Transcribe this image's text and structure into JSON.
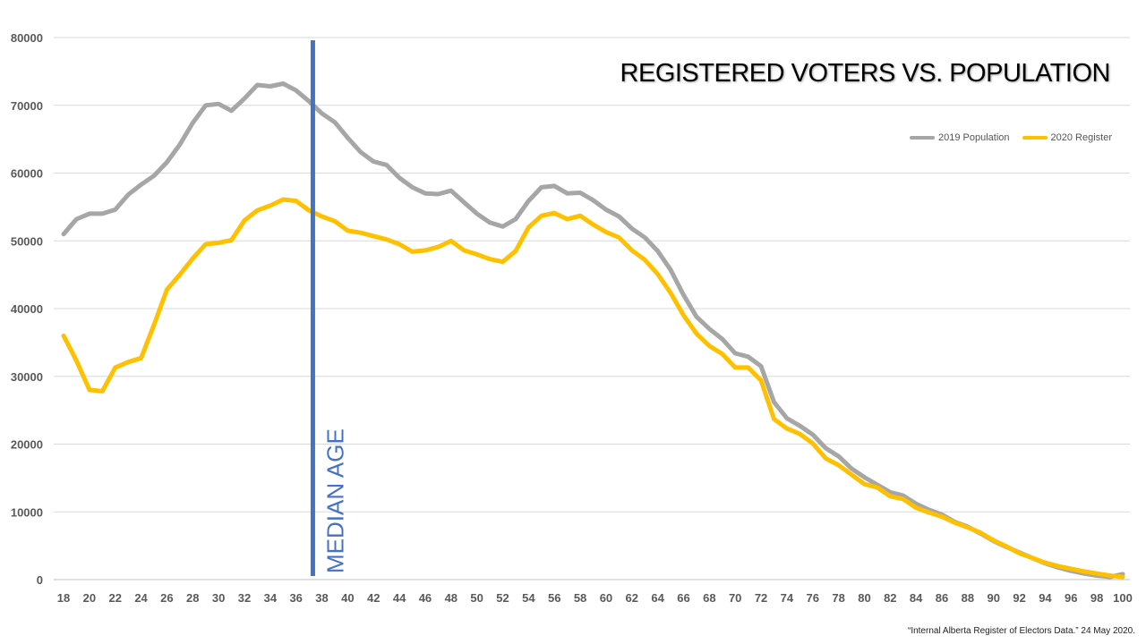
{
  "chart_data": {
    "type": "line",
    "title": "REGISTERED VOTERS VS. POPULATION",
    "xlabel": "",
    "ylabel": "",
    "xlim": [
      18,
      100
    ],
    "ylim": [
      0,
      80000
    ],
    "y_ticks": [
      0,
      10000,
      20000,
      30000,
      40000,
      50000,
      60000,
      70000,
      80000
    ],
    "x_tick_labels": [
      18,
      20,
      22,
      24,
      26,
      28,
      30,
      32,
      34,
      36,
      38,
      40,
      42,
      44,
      46,
      48,
      50,
      52,
      54,
      56,
      58,
      60,
      62,
      64,
      66,
      68,
      70,
      72,
      74,
      76,
      78,
      80,
      82,
      84,
      86,
      88,
      90,
      92,
      94,
      96,
      98,
      100
    ],
    "grid": "horizontal",
    "legend_position": "top-right",
    "x": [
      18,
      19,
      20,
      21,
      22,
      23,
      24,
      25,
      26,
      27,
      28,
      29,
      30,
      31,
      32,
      33,
      34,
      35,
      36,
      37,
      38,
      39,
      40,
      41,
      42,
      43,
      44,
      45,
      46,
      47,
      48,
      49,
      50,
      51,
      52,
      53,
      54,
      55,
      56,
      57,
      58,
      59,
      60,
      61,
      62,
      63,
      64,
      65,
      66,
      67,
      68,
      69,
      70,
      71,
      72,
      73,
      74,
      75,
      76,
      77,
      78,
      79,
      80,
      81,
      82,
      83,
      84,
      85,
      86,
      87,
      88,
      89,
      90,
      91,
      92,
      93,
      94,
      95,
      96,
      97,
      98,
      99,
      100
    ],
    "series": [
      {
        "name": "2019 Population",
        "color": "#a6a6a6",
        "values": [
          51000,
          53200,
          54000,
          54000,
          54600,
          56800,
          58300,
          59600,
          61600,
          64200,
          67400,
          70000,
          70200,
          69200,
          71000,
          73000,
          72800,
          73200,
          72200,
          70600,
          68800,
          67500,
          65200,
          63100,
          61700,
          61200,
          59300,
          57900,
          57000,
          56900,
          57400,
          55700,
          54000,
          52700,
          52100,
          53200,
          55900,
          57900,
          58100,
          57000,
          57100,
          56000,
          54600,
          53600,
          51800,
          50500,
          48500,
          45700,
          42000,
          38800,
          37000,
          35500,
          33400,
          32900,
          31500,
          26200,
          23800,
          22700,
          21400,
          19400,
          18200,
          16400,
          15100,
          14000,
          12900,
          12400,
          11200,
          10300,
          9600,
          8500,
          7800,
          6800,
          5700,
          4800,
          4000,
          3200,
          2400,
          1800,
          1300,
          900,
          600,
          400,
          800
        ]
      },
      {
        "name": "2020 Register",
        "color": "#ffc000",
        "values": [
          36000,
          32300,
          28000,
          27800,
          31300,
          32100,
          32700,
          37600,
          42800,
          45000,
          47400,
          49500,
          49700,
          50100,
          53000,
          54500,
          55200,
          56100,
          55900,
          54500,
          53600,
          52900,
          51500,
          51200,
          50700,
          50200,
          49500,
          48400,
          48600,
          49100,
          50000,
          48600,
          48000,
          47300,
          46900,
          48500,
          52000,
          53700,
          54100,
          53200,
          53700,
          52400,
          51300,
          50500,
          48600,
          47200,
          45100,
          42300,
          39000,
          36300,
          34500,
          33300,
          31300,
          31300,
          29400,
          23700,
          22300,
          21500,
          20100,
          17900,
          16900,
          15500,
          14100,
          13600,
          12300,
          11900,
          10600,
          9900,
          9300,
          8400,
          7700,
          6900,
          5800,
          4900,
          3900,
          3200,
          2500,
          2000,
          1600,
          1200,
          900,
          600,
          400
        ]
      }
    ],
    "annotation": {
      "label": "MEDIAN AGE",
      "x": 37.3,
      "color": "#4472c4"
    }
  },
  "legend": {
    "population": "2019 Population",
    "register": "2020 Register"
  },
  "source": "“Internal Alberta Register of Electors Data.” 24 May 2020."
}
